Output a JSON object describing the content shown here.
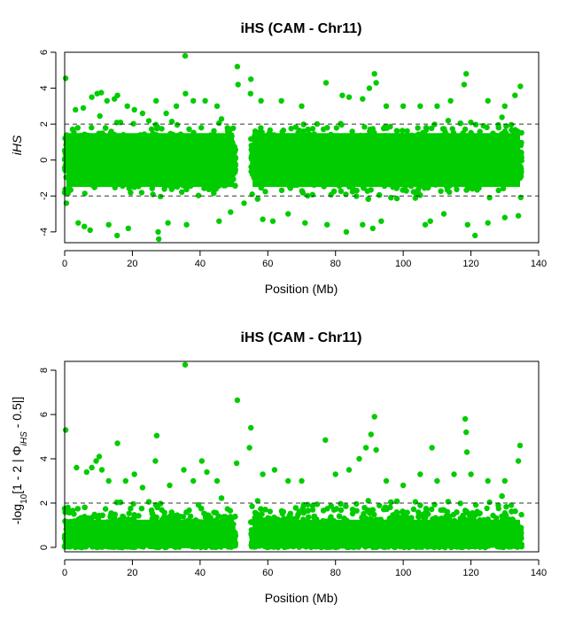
{
  "chart_data": [
    {
      "type": "scatter",
      "title": "iHS (CAM - Chr11)",
      "xlabel": "Position (Mb)",
      "ylabel": "iHS",
      "xlim": [
        0,
        140
      ],
      "ylim": [
        -4.6,
        6.0
      ],
      "x_ticks": [
        0,
        20,
        40,
        60,
        80,
        100,
        120,
        140
      ],
      "y_ticks": [
        -4,
        -2,
        0,
        2,
        4,
        6
      ],
      "reference_lines": [
        2,
        -2
      ],
      "point_color": "#00CC00",
      "grid": false,
      "chromosome_end_mb": 135,
      "gap_mb": [
        50.5,
        55
      ],
      "outlier_points": [
        [
          0.3,
          4.55
        ],
        [
          3.2,
          2.8
        ],
        [
          5.5,
          2.9
        ],
        [
          8.0,
          3.5
        ],
        [
          9.6,
          3.7
        ],
        [
          10.8,
          3.75
        ],
        [
          12.5,
          3.3
        ],
        [
          14.7,
          3.4
        ],
        [
          15.6,
          3.6
        ],
        [
          18.5,
          3.0
        ],
        [
          20.6,
          2.8
        ],
        [
          23.0,
          2.6
        ],
        [
          27.0,
          3.3
        ],
        [
          30.0,
          2.6
        ],
        [
          33.0,
          3.0
        ],
        [
          35.7,
          3.7
        ],
        [
          35.6,
          5.8
        ],
        [
          38.0,
          3.3
        ],
        [
          41.5,
          3.3
        ],
        [
          45.0,
          3.0
        ],
        [
          51.0,
          5.2
        ],
        [
          51.2,
          4.2
        ],
        [
          55.0,
          4.5
        ],
        [
          54.9,
          3.7
        ],
        [
          58.0,
          3.3
        ],
        [
          64.0,
          3.3
        ],
        [
          70.0,
          3.0
        ],
        [
          77.2,
          4.3
        ],
        [
          82.0,
          3.6
        ],
        [
          84.0,
          3.5
        ],
        [
          88.0,
          3.4
        ],
        [
          90.0,
          4.0
        ],
        [
          91.5,
          4.8
        ],
        [
          92.0,
          4.3
        ],
        [
          95.0,
          3.0
        ],
        [
          100.0,
          3.0
        ],
        [
          105.0,
          3.0
        ],
        [
          110.0,
          3.0
        ],
        [
          114.0,
          3.3
        ],
        [
          118.0,
          4.2
        ],
        [
          118.6,
          4.8
        ],
        [
          125.0,
          3.3
        ],
        [
          130.0,
          3.0
        ],
        [
          133.0,
          3.6
        ],
        [
          134.6,
          4.1
        ],
        [
          0.5,
          -2.4
        ],
        [
          4.0,
          -3.5
        ],
        [
          5.8,
          -3.7
        ],
        [
          7.5,
          -3.9
        ],
        [
          13.0,
          -3.6
        ],
        [
          15.5,
          -4.2
        ],
        [
          18.8,
          -3.8
        ],
        [
          27.8,
          -4.4
        ],
        [
          27.6,
          -4.0
        ],
        [
          30.5,
          -3.5
        ],
        [
          36.0,
          -3.6
        ],
        [
          45.6,
          -3.4
        ],
        [
          49.0,
          -2.9
        ],
        [
          53.0,
          -2.4
        ],
        [
          58.5,
          -3.3
        ],
        [
          61.5,
          -3.4
        ],
        [
          66.0,
          -3.0
        ],
        [
          71.0,
          -3.5
        ],
        [
          77.5,
          -3.6
        ],
        [
          83.2,
          -4.0
        ],
        [
          88.0,
          -3.6
        ],
        [
          91.0,
          -3.8
        ],
        [
          93.5,
          -3.4
        ],
        [
          106.5,
          -3.6
        ],
        [
          108.0,
          -3.4
        ],
        [
          112.0,
          -3.0
        ],
        [
          119.0,
          -3.6
        ],
        [
          121.2,
          -4.2
        ],
        [
          125.0,
          -3.5
        ],
        [
          130.0,
          -3.2
        ],
        [
          134.0,
          -3.1
        ]
      ]
    },
    {
      "type": "scatter",
      "title": "iHS (CAM - Chr11)",
      "xlabel": "Position (Mb)",
      "ylabel": "-log10[1 - 2 | ΦiHS - 0.5|]",
      "xlim": [
        0,
        140
      ],
      "ylim": [
        -0.2,
        8.4
      ],
      "x_ticks": [
        0,
        20,
        40,
        60,
        80,
        100,
        120,
        140
      ],
      "y_ticks": [
        0,
        2,
        4,
        6,
        8
      ],
      "reference_lines": [
        2
      ],
      "point_color": "#00CC00",
      "grid": false,
      "chromosome_end_mb": 135,
      "gap_mb": [
        50.5,
        55
      ],
      "outlier_points": [
        [
          0.3,
          5.3
        ],
        [
          3.5,
          3.6
        ],
        [
          6.5,
          3.4
        ],
        [
          8.0,
          3.6
        ],
        [
          9.3,
          3.9
        ],
        [
          10.2,
          4.1
        ],
        [
          11.0,
          3.5
        ],
        [
          13.0,
          3.0
        ],
        [
          15.6,
          4.7
        ],
        [
          18.0,
          3.0
        ],
        [
          20.6,
          3.3
        ],
        [
          23.0,
          2.7
        ],
        [
          27.2,
          5.05
        ],
        [
          26.8,
          3.9
        ],
        [
          31.0,
          2.8
        ],
        [
          35.6,
          8.25
        ],
        [
          35.2,
          3.5
        ],
        [
          38.0,
          3.0
        ],
        [
          40.5,
          3.9
        ],
        [
          42.0,
          3.4
        ],
        [
          45.0,
          3.0
        ],
        [
          51.0,
          6.65
        ],
        [
          50.8,
          3.8
        ],
        [
          55.0,
          5.4
        ],
        [
          54.6,
          4.5
        ],
        [
          58.5,
          3.3
        ],
        [
          62.0,
          3.5
        ],
        [
          66.0,
          3.0
        ],
        [
          70.0,
          3.0
        ],
        [
          77.0,
          4.85
        ],
        [
          80.0,
          3.3
        ],
        [
          84.0,
          3.5
        ],
        [
          87.0,
          4.0
        ],
        [
          89.0,
          4.5
        ],
        [
          90.5,
          5.1
        ],
        [
          91.5,
          5.9
        ],
        [
          92.0,
          4.4
        ],
        [
          95.0,
          3.0
        ],
        [
          100.0,
          2.8
        ],
        [
          105.0,
          3.3
        ],
        [
          108.5,
          4.5
        ],
        [
          110.0,
          3.0
        ],
        [
          115.0,
          3.3
        ],
        [
          118.3,
          5.8
        ],
        [
          118.6,
          5.2
        ],
        [
          118.8,
          4.3
        ],
        [
          120.0,
          3.3
        ],
        [
          125.0,
          3.0
        ],
        [
          130.0,
          3.0
        ],
        [
          134.5,
          4.6
        ],
        [
          134.0,
          3.9
        ]
      ]
    }
  ]
}
